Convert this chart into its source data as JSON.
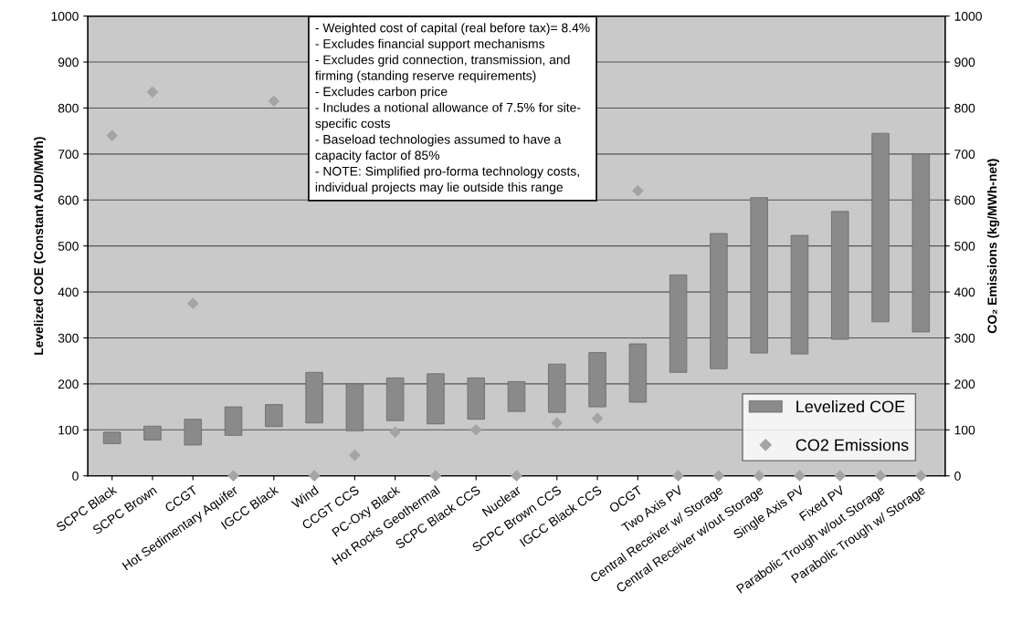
{
  "chart_data": {
    "type": "bar",
    "ylabel": "Levelized COE (Constant AUD/MWh)",
    "y2label": "CO₂ Emissions (kg/MWh-net)",
    "categories": [
      "SCPC Black",
      "SCPC Brown",
      "CCGT",
      "Hot Sedimentary Aquifer",
      "IGCC Black",
      "Wind",
      "CCGT CCS",
      "PC-Oxy Black",
      "Hot Rocks Geothermal",
      "SCPC Black CCS",
      "Nuclear",
      "SCPC Brown CCS",
      "IGCC Black CCS",
      "OCGT",
      "Two Axis PV",
      "Central Receiver w/ Storage",
      "Central Receiver w/out Storage",
      "Single Axis PV",
      "Fixed PV",
      "Parabolic Trough w/out Storage",
      "Parabolic Trough w/ Storage"
    ],
    "series": [
      {
        "name": "Levelized COE",
        "color": "#8a8a8a",
        "base": [
          70,
          78,
          67,
          88,
          107,
          115,
          98,
          120,
          113,
          123,
          140,
          138,
          150,
          160,
          225,
          233,
          267,
          265,
          297,
          335,
          313
        ],
        "values": [
          25,
          30,
          56,
          62,
          48,
          110,
          102,
          93,
          109,
          90,
          65,
          105,
          118,
          127,
          212,
          294,
          338,
          258,
          278,
          410,
          387
        ]
      },
      {
        "name": "CO2 Emissions",
        "type": "scatter",
        "axis": "y2",
        "color": "#a4a4a4",
        "marker": "diamond",
        "values": [
          740,
          835,
          375,
          0,
          815,
          0,
          45,
          95,
          0,
          100,
          0,
          115,
          125,
          620,
          0,
          0,
          0,
          0,
          0,
          0,
          0
        ]
      }
    ],
    "ylim": [
      0,
      1000
    ],
    "yticks": [
      0,
      100,
      200,
      300,
      400,
      500,
      600,
      700,
      800,
      900,
      1000
    ],
    "y2lim": [
      0,
      1000
    ],
    "y2ticks": [
      0,
      100,
      200,
      300,
      400,
      500,
      600,
      700,
      800,
      900,
      1000
    ],
    "grid": "y",
    "legend": "bottom right",
    "annotations": [
      "- Weighted cost of capital (real before tax)= 8.4%\n- Excludes financial support mechanisms\n- Excludes grid connection, transmission, and\nfirming (standing reserve requirements)\n- Excludes carbon price\n- Includes a notional allowance of 7.5% for site-\nspecific costs\n- Baseload technologies assumed to have a\ncapacity factor of 85%\n- NOTE: Simplified pro-forma technology costs,\nindividual projects may lie outside this range"
    ]
  }
}
